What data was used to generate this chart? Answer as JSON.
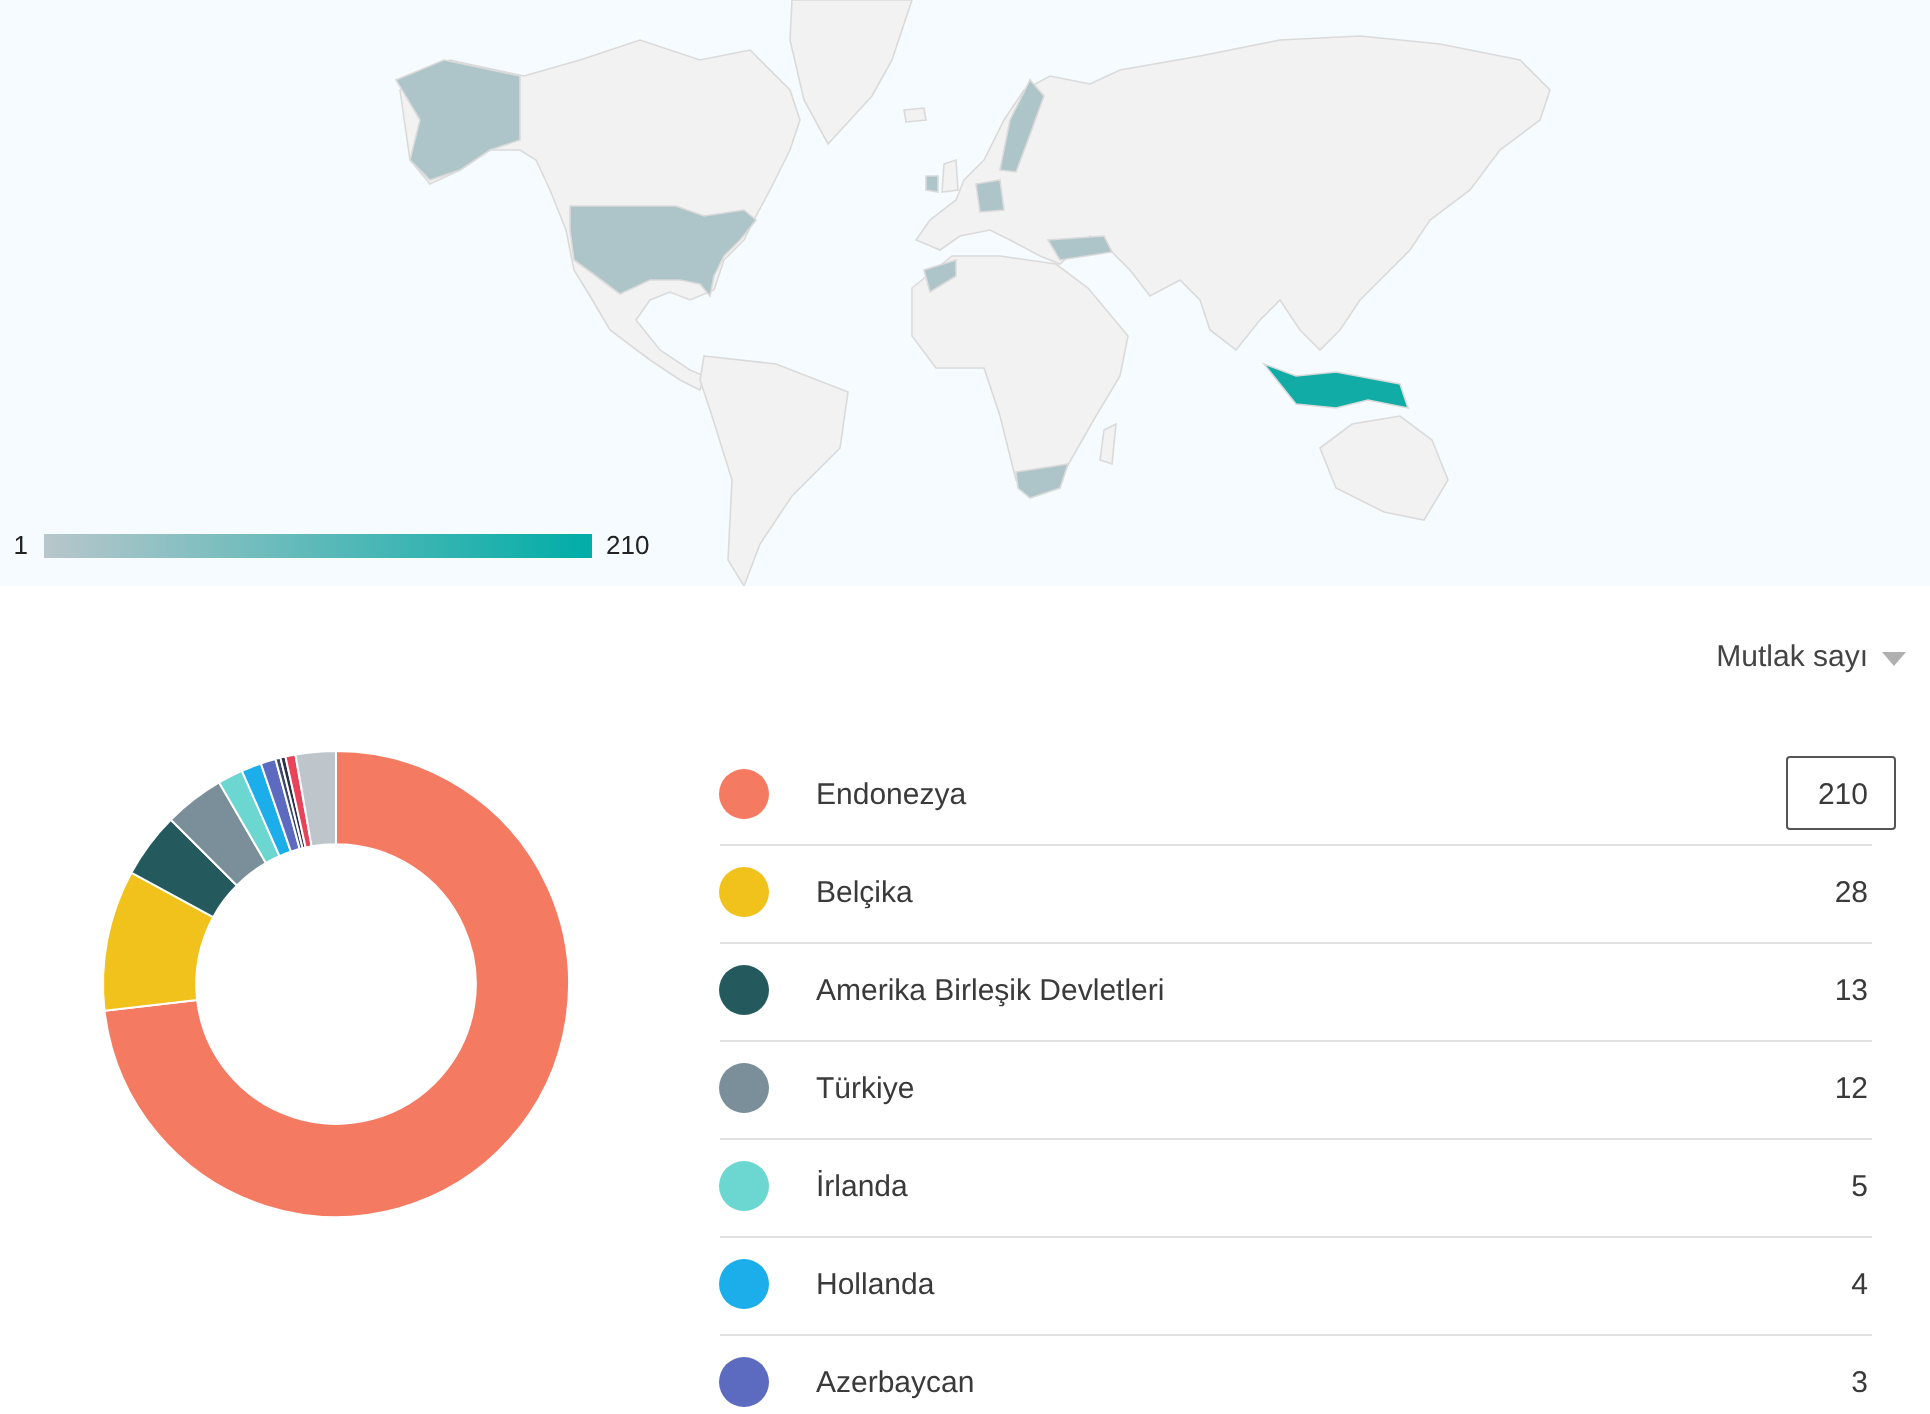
{
  "chart_data": [
    {
      "type": "other",
      "annotations": [
        "1",
        "210"
      ]
    },
    {
      "type": "donut",
      "categories": [
        "Endonezya",
        "Belçika",
        "Amerika Birleşik Devletleri",
        "Türkiye",
        "İrlanda",
        "Hollanda",
        "Azerbaycan",
        null,
        null,
        null,
        null
      ],
      "values": [
        210,
        28,
        13,
        12,
        5,
        4,
        3,
        1,
        1,
        2,
        8
      ],
      "colors": [
        "#f47a61",
        "#f1c21b",
        "#245a5e",
        "#7a8f99",
        "#6cd6d0",
        "#1caeea",
        "#5c6bc0",
        "#3c4a6e",
        "#2c2f45",
        "#e9435a",
        "#bec6cb"
      ],
      "value_labels": [
        "210",
        "28",
        "13",
        "12",
        "5",
        "4",
        "3",
        null,
        null,
        null,
        null
      ],
      "legend": "right",
      "annotations": [
        "Mutlak sayı"
      ]
    }
  ]
}
